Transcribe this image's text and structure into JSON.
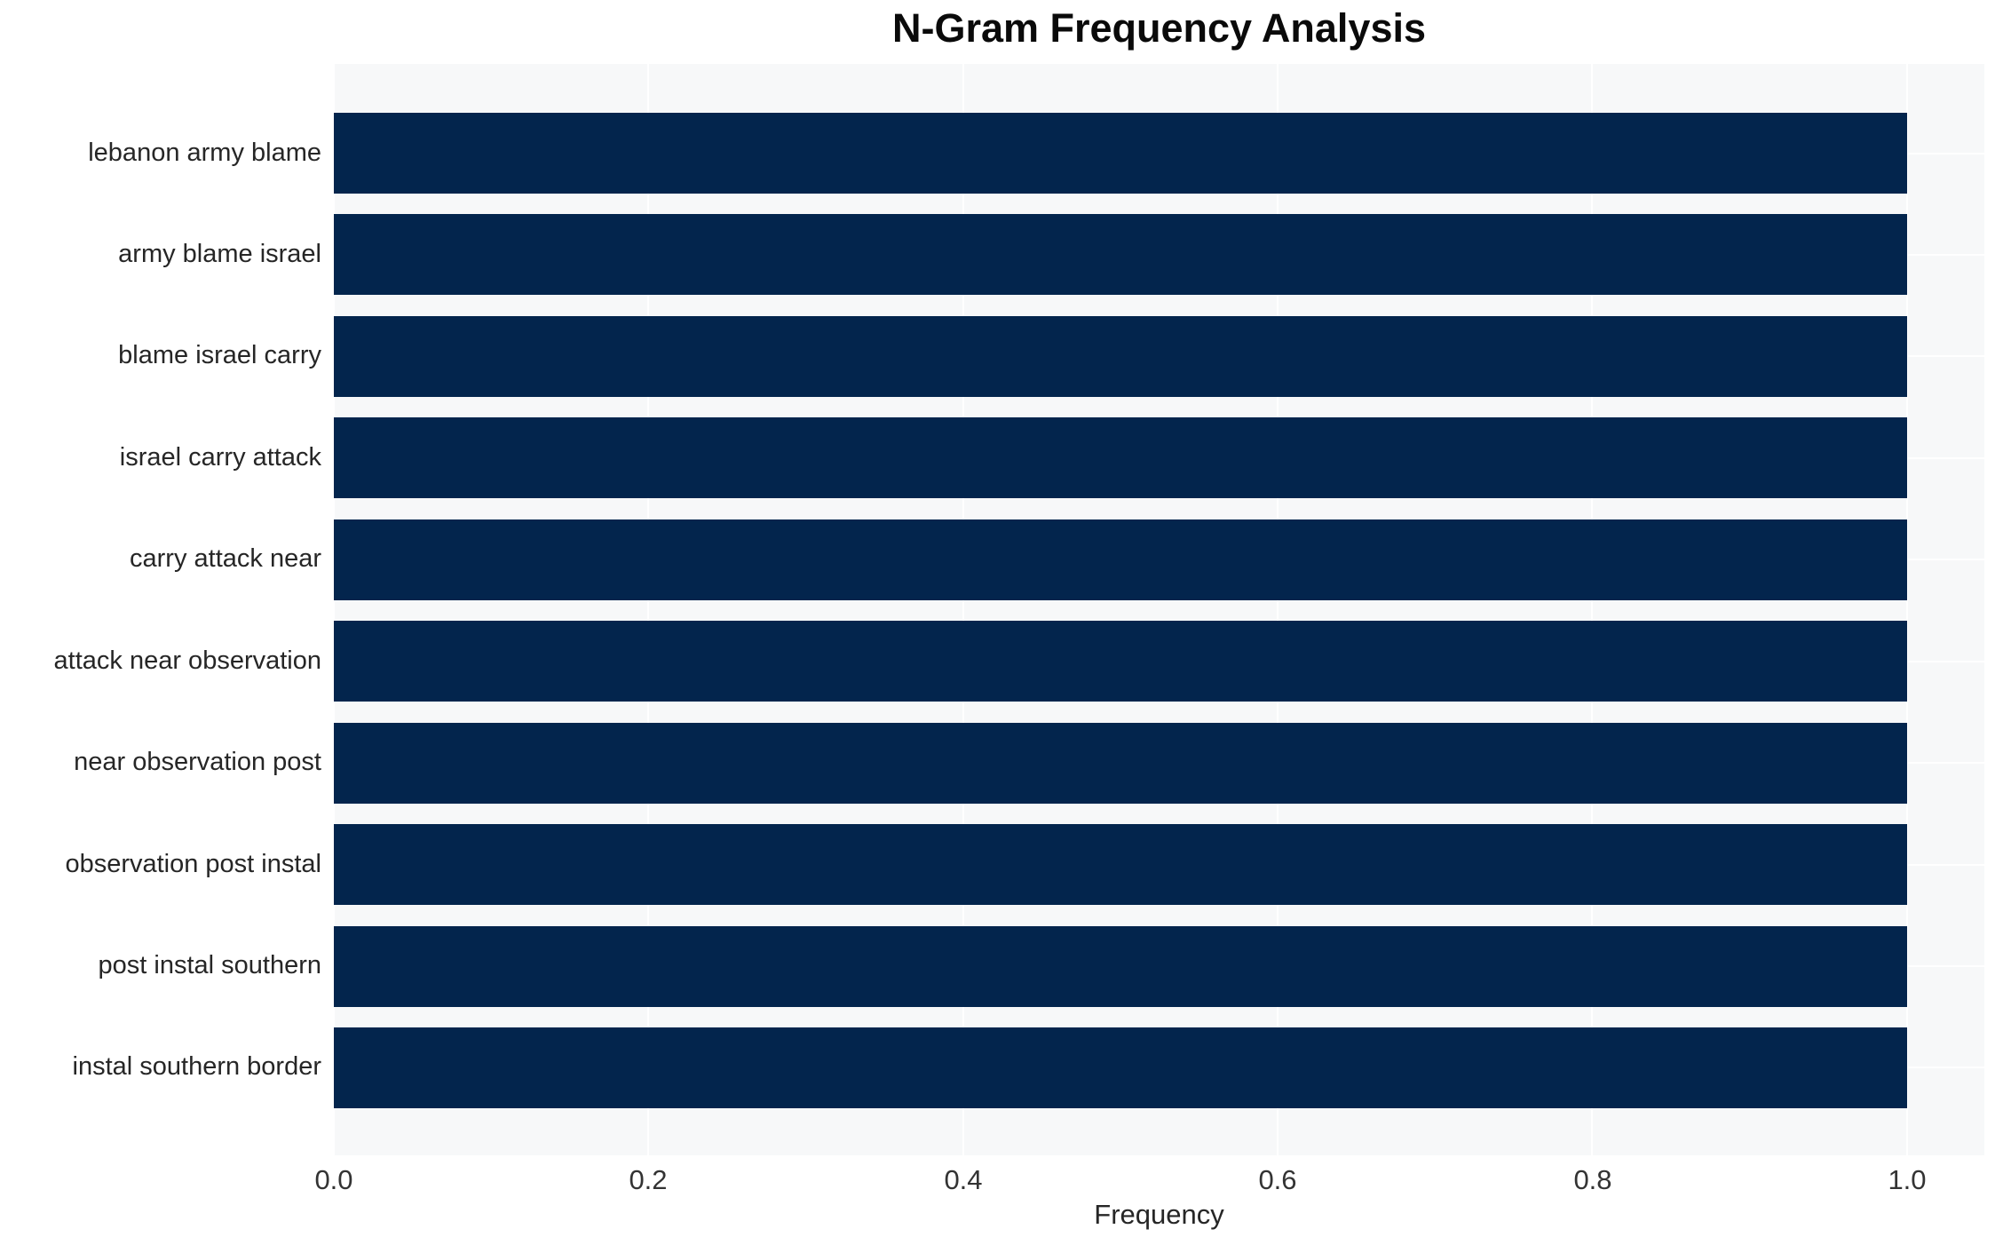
{
  "chart_data": {
    "type": "bar",
    "orientation": "horizontal",
    "title": "N-Gram Frequency Analysis",
    "categories": [
      "lebanon army blame",
      "army blame israel",
      "blame israel carry",
      "israel carry attack",
      "carry attack near",
      "attack near observation",
      "near observation post",
      "observation post instal",
      "post instal southern",
      "instal southern border"
    ],
    "values": [
      1.0,
      1.0,
      1.0,
      1.0,
      1.0,
      1.0,
      1.0,
      1.0,
      1.0,
      1.0
    ],
    "xlabel": "Frequency",
    "ylabel": "",
    "xticks": [
      "0.0",
      "0.2",
      "0.4",
      "0.6",
      "0.8",
      "1.0"
    ],
    "xlim": [
      0,
      1.049
    ],
    "grid": true,
    "legend": false,
    "colors": {
      "bar": "#03254d",
      "plot_bg": "#f7f8f9",
      "grid": "#ffffff",
      "text": "#262626",
      "title": "#0a0a0a"
    }
  }
}
